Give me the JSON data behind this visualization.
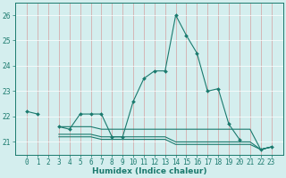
{
  "xlabel": "Humidex (Indice chaleur)",
  "x": [
    0,
    1,
    2,
    3,
    4,
    5,
    6,
    7,
    8,
    9,
    10,
    11,
    12,
    13,
    14,
    15,
    16,
    17,
    18,
    19,
    20,
    21,
    22,
    23
  ],
  "line1": [
    22.2,
    22.1,
    null,
    21.6,
    21.5,
    22.1,
    22.1,
    22.1,
    21.2,
    21.2,
    22.6,
    23.5,
    23.8,
    23.8,
    26.0,
    25.2,
    24.5,
    23.0,
    23.1,
    21.7,
    21.1,
    null,
    20.7,
    20.8
  ],
  "line2": [
    22.2,
    null,
    null,
    21.6,
    21.6,
    21.6,
    21.6,
    21.5,
    21.5,
    21.5,
    21.5,
    21.5,
    21.5,
    21.5,
    21.5,
    21.5,
    21.5,
    21.5,
    21.5,
    21.5,
    21.5,
    21.5,
    20.7,
    20.8
  ],
  "line3": [
    22.2,
    null,
    null,
    21.3,
    21.3,
    21.3,
    21.3,
    21.2,
    21.2,
    21.2,
    21.2,
    21.2,
    21.2,
    21.2,
    21.0,
    21.0,
    21.0,
    21.0,
    21.0,
    21.0,
    21.0,
    21.0,
    20.7,
    20.8
  ],
  "line4": [
    22.2,
    null,
    null,
    21.2,
    21.2,
    21.2,
    21.2,
    21.1,
    21.1,
    21.1,
    21.1,
    21.1,
    21.1,
    21.1,
    20.9,
    20.9,
    20.9,
    20.9,
    20.9,
    20.9,
    20.9,
    20.9,
    20.7,
    20.8
  ],
  "color": "#1a7a6e",
  "bg_color": "#d4eeee",
  "grid_color": "#b8dede",
  "ylim": [
    20.5,
    26.5
  ],
  "yticks": [
    21,
    22,
    23,
    24,
    25,
    26
  ],
  "xticks": [
    0,
    1,
    2,
    3,
    4,
    5,
    6,
    7,
    8,
    9,
    10,
    11,
    12,
    13,
    14,
    15,
    16,
    17,
    18,
    19,
    20,
    21,
    22,
    23
  ],
  "tick_fontsize": 5.5,
  "xlabel_fontsize": 6.5
}
